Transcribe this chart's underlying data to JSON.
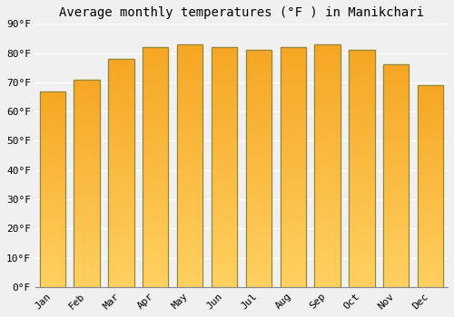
{
  "title": "Average monthly temperatures (°F ) in Manikchari",
  "months": [
    "Jan",
    "Feb",
    "Mar",
    "Apr",
    "May",
    "Jun",
    "Jul",
    "Aug",
    "Sep",
    "Oct",
    "Nov",
    "Dec"
  ],
  "values": [
    67,
    71,
    78,
    82,
    83,
    82,
    81,
    82,
    83,
    81,
    76,
    69
  ],
  "bar_color_top": "#F5A623",
  "bar_color_bottom": "#FFD060",
  "bar_edge_color": "#888844",
  "background_color": "#f0f0f0",
  "grid_color": "#ffffff",
  "ylim": [
    0,
    90
  ],
  "ytick_step": 10,
  "title_fontsize": 10,
  "tick_fontsize": 8,
  "font_family": "monospace",
  "bar_width": 0.75
}
